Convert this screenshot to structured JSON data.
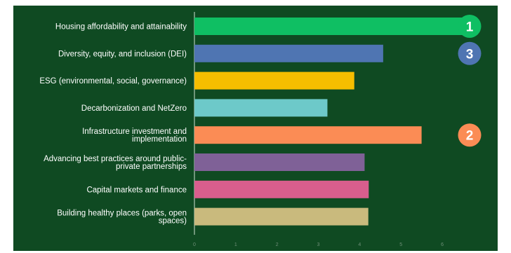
{
  "chart_data": {
    "type": "bar",
    "orientation": "horizontal",
    "categories": [
      "Housing affordability and attainability",
      "Diversity, equity, and inclusion (DEI)",
      "ESG (environmental, social, governance)",
      "Decarbonization and NetZero",
      "Infrastructure investment and implementation",
      "Advancing best practices around public-private partnerships",
      "Capital markets and finance",
      "Building healthy places (parks, open spaces)"
    ],
    "category_label_lines": [
      [
        "Housing affordability and attainability"
      ],
      [
        "Diversity, equity, and inclusion (DEI)"
      ],
      [
        "ESG (environmental, social, governance)"
      ],
      [
        "Decarbonization and NetZero"
      ],
      [
        "Infrastructure investment and",
        "implementation"
      ],
      [
        "Advancing best practices around public-",
        "private partnerships"
      ],
      [
        "Capital markets and finance"
      ],
      [
        "Building healthy places (parks, open",
        "spaces)"
      ]
    ],
    "values": [
      6.73,
      4.57,
      3.87,
      3.22,
      5.5,
      4.12,
      4.22,
      4.21
    ],
    "bar_colors": [
      "#0fbf63",
      "#4f75b2",
      "#f5be00",
      "#6dc9c9",
      "#fb8c55",
      "#7f6197",
      "#d85e8d",
      "#c9ba7d"
    ],
    "xlim": [
      0,
      6.9
    ],
    "xticks": [
      "0",
      "1",
      "2",
      "3",
      "4",
      "5",
      "6"
    ],
    "title": "",
    "xlabel": "",
    "ylabel": "",
    "grid": false,
    "rank_badges": [
      {
        "label": "1",
        "category_index": 0,
        "color": "#0fbf63"
      },
      {
        "label": "3",
        "category_index": 1,
        "color": "#4f75b2"
      },
      {
        "label": "2",
        "category_index": 4,
        "color": "#fb8c55"
      }
    ]
  },
  "colors": {
    "background": "#0f4a22",
    "axis": "#cfe0d3",
    "tick_text": "#6f8f78"
  }
}
